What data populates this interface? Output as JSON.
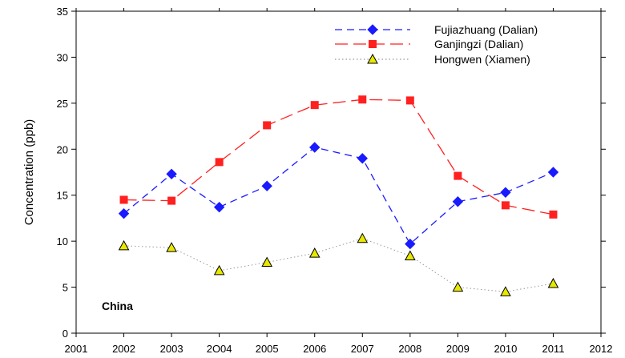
{
  "chart_data": {
    "type": "line",
    "title": "",
    "xlabel": "",
    "ylabel": "Concentration (ppb)",
    "xlim": [
      2001,
      2012
    ],
    "ylim": [
      0,
      35
    ],
    "x_ticks": [
      2001,
      2002,
      2003,
      2004,
      2005,
      2006,
      2007,
      2008,
      2009,
      2010,
      2011,
      2012
    ],
    "x_tick_labels": [
      "2001",
      "2002",
      "2003",
      "2O04",
      "2005",
      "2006",
      "2007",
      "2008",
      "2009",
      "2010",
      "2011",
      "2012"
    ],
    "y_ticks": [
      0,
      5,
      10,
      15,
      20,
      25,
      30,
      35
    ],
    "grid": false,
    "legend_position": "top-right",
    "annotation": "China",
    "x": [
      2002,
      2003,
      2004,
      2005,
      2006,
      2007,
      2008,
      2009,
      2010,
      2011
    ],
    "series": [
      {
        "name": "Fujiazhuang (Dalian)",
        "color": "#1a1aff",
        "marker": "diamond",
        "line_style": "dashed",
        "values": [
          13.0,
          17.3,
          13.7,
          16.0,
          20.2,
          19.0,
          9.7,
          14.3,
          15.3,
          17.5
        ]
      },
      {
        "name": "Ganjingzi (Dalian)",
        "color": "#ff2020",
        "marker": "square",
        "line_style": "long-dashed",
        "values": [
          14.5,
          14.4,
          18.6,
          22.6,
          24.8,
          25.4,
          25.3,
          17.1,
          13.9,
          12.9
        ]
      },
      {
        "name": "Hongwen (Xiamen)",
        "color": "#e8e800",
        "marker": "triangle",
        "line_style": "dotted",
        "values": [
          9.5,
          9.3,
          6.8,
          7.7,
          8.7,
          10.3,
          8.4,
          5.0,
          4.5,
          5.4
        ]
      }
    ]
  }
}
